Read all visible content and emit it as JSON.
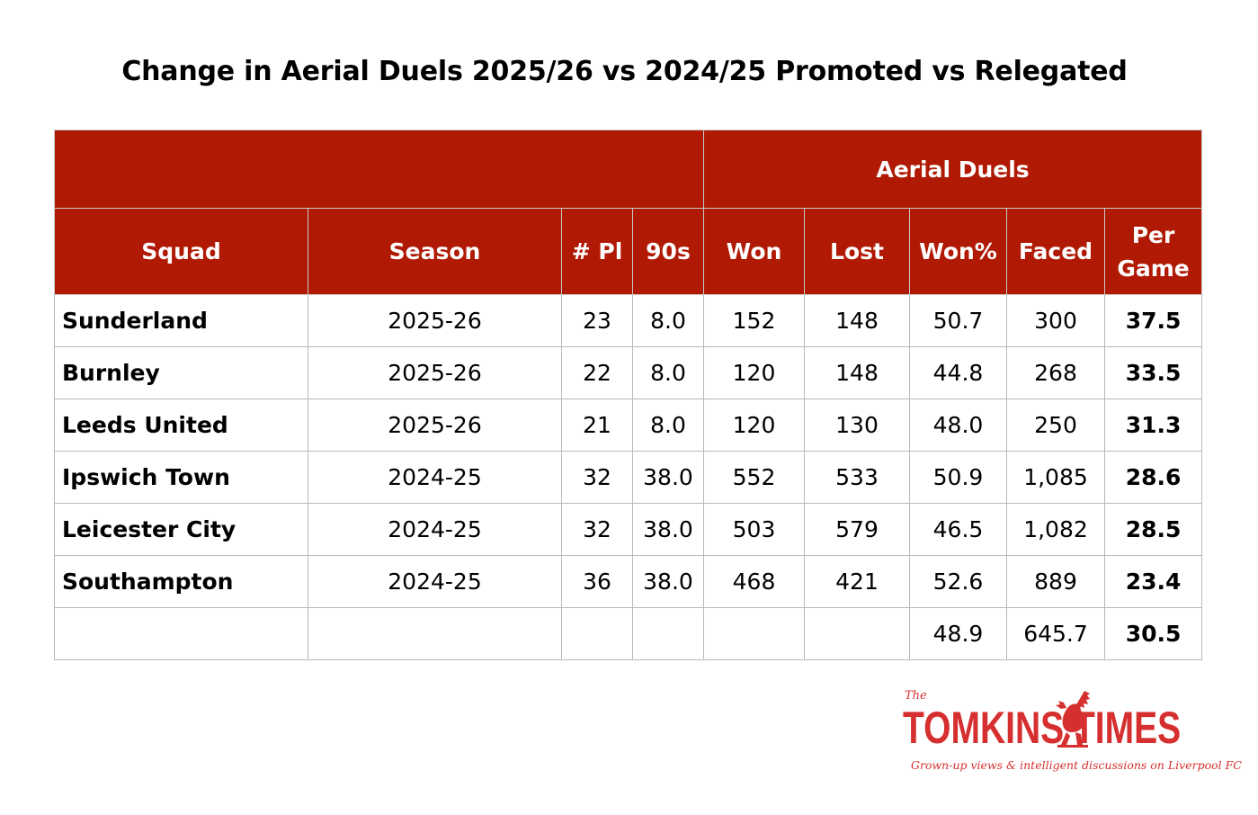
{
  "chart_data": {
    "type": "table",
    "title": "Change in Aerial Duels 2025/26 vs 2024/25 Promoted vs Relegated",
    "group_header": "Aerial Duels",
    "columns": [
      "Squad",
      "Season",
      "# Pl",
      "90s",
      "Won",
      "Lost",
      "Won%",
      "Faced",
      "Per Game"
    ],
    "rows": [
      [
        "Sunderland",
        "2025-26",
        "23",
        "8.0",
        "152",
        "148",
        "50.7",
        "300",
        "37.5"
      ],
      [
        "Burnley",
        "2025-26",
        "22",
        "8.0",
        "120",
        "148",
        "44.8",
        "268",
        "33.5"
      ],
      [
        "Leeds United",
        "2025-26",
        "21",
        "8.0",
        "120",
        "130",
        "48.0",
        "250",
        "31.3"
      ],
      [
        "Ipswich Town",
        "2024-25",
        "32",
        "38.0",
        "552",
        "533",
        "50.9",
        "1,085",
        "28.6"
      ],
      [
        "Leicester City",
        "2024-25",
        "32",
        "38.0",
        "503",
        "579",
        "46.5",
        "1,082",
        "28.5"
      ],
      [
        "Southampton",
        "2024-25",
        "36",
        "38.0",
        "468",
        "421",
        "52.6",
        "889",
        "23.4"
      ]
    ],
    "summary": [
      "",
      "",
      "",
      "",
      "",
      "",
      "48.9",
      "645.7",
      "30.5"
    ]
  },
  "logo": {
    "the": "The",
    "name": "TOMKINS   TIMES",
    "tagline": "Grown-up views & intelligent discussions on Liverpool FC"
  },
  "colors": {
    "header": "#b01a04",
    "logo": "#d62f2f"
  }
}
